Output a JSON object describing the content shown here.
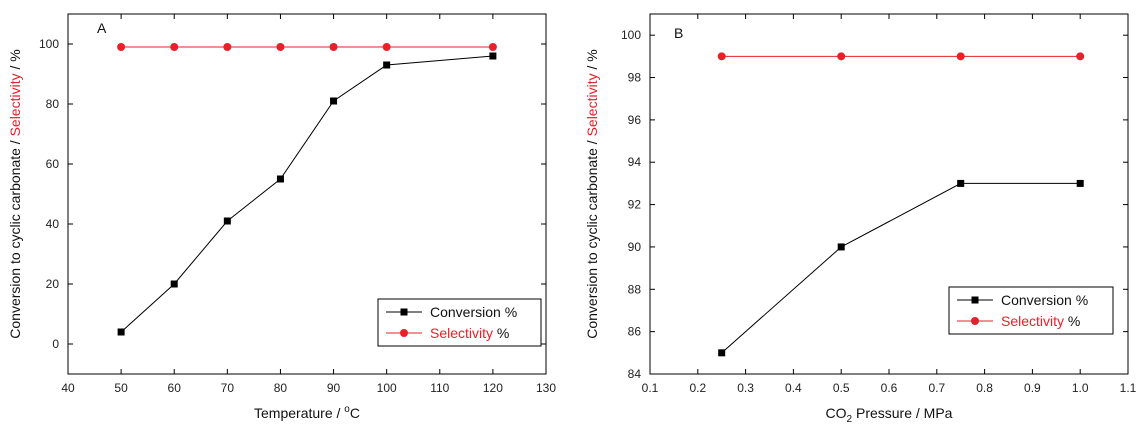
{
  "chart_data": [
    {
      "type": "line",
      "panel_label": "A",
      "xlabel_prefix": "Temperature / ",
      "xlabel_degree": "o",
      "xlabel_unit": "C",
      "ylabel_black": "Conversion to cyclic carbonate / ",
      "ylabel_red": "Selectivity",
      "ylabel_suffix": " / %",
      "xlim": [
        40,
        130
      ],
      "ylim": [
        -10,
        110
      ],
      "xticks": [
        40,
        50,
        60,
        70,
        80,
        90,
        100,
        110,
        120,
        130
      ],
      "yticks": [
        0,
        20,
        40,
        60,
        80,
        100
      ],
      "legend_position": "bottom-right",
      "series": [
        {
          "name_main": "Conversion",
          "name_suffix": " %",
          "color": "#000000",
          "marker": "square",
          "x": [
            50,
            60,
            70,
            80,
            90,
            100,
            120
          ],
          "y": [
            4,
            20,
            41,
            55,
            81,
            93,
            96
          ]
        },
        {
          "name_main": "Selectivity",
          "name_suffix": " %",
          "color": "#e8202a",
          "marker": "circle",
          "x": [
            50,
            60,
            70,
            80,
            90,
            100,
            120
          ],
          "y": [
            99,
            99,
            99,
            99,
            99,
            99,
            99
          ]
        }
      ]
    },
    {
      "type": "line",
      "panel_label": "B",
      "xlabel_prefix": "CO",
      "xlabel_sub": "2",
      "xlabel_rest": " Pressure / MPa",
      "ylabel_black": "Conversion to cyclic carbonate / ",
      "ylabel_red": "Selectivity",
      "ylabel_suffix": " / %",
      "xlim": [
        0.1,
        1.1
      ],
      "ylim": [
        84,
        101
      ],
      "xticks": [
        "0.1",
        "0.2",
        "0.3",
        "0.4",
        "0.5",
        "0.6",
        "0.7",
        "0.8",
        "0.9",
        "1.0",
        "1.1"
      ],
      "yticks": [
        84,
        86,
        88,
        90,
        92,
        94,
        96,
        98,
        100
      ],
      "legend_position": "bottom-right",
      "series": [
        {
          "name_main": "Conversion",
          "name_suffix": " %",
          "color": "#000000",
          "marker": "square",
          "x": [
            0.25,
            0.5,
            0.75,
            1.0
          ],
          "y": [
            85,
            90,
            93,
            93
          ]
        },
        {
          "name_main": "Selectivity",
          "name_suffix": " %",
          "color": "#e8202a",
          "marker": "circle",
          "x": [
            0.25,
            0.5,
            0.75,
            1.0
          ],
          "y": [
            99,
            99,
            99,
            99
          ]
        }
      ]
    }
  ]
}
